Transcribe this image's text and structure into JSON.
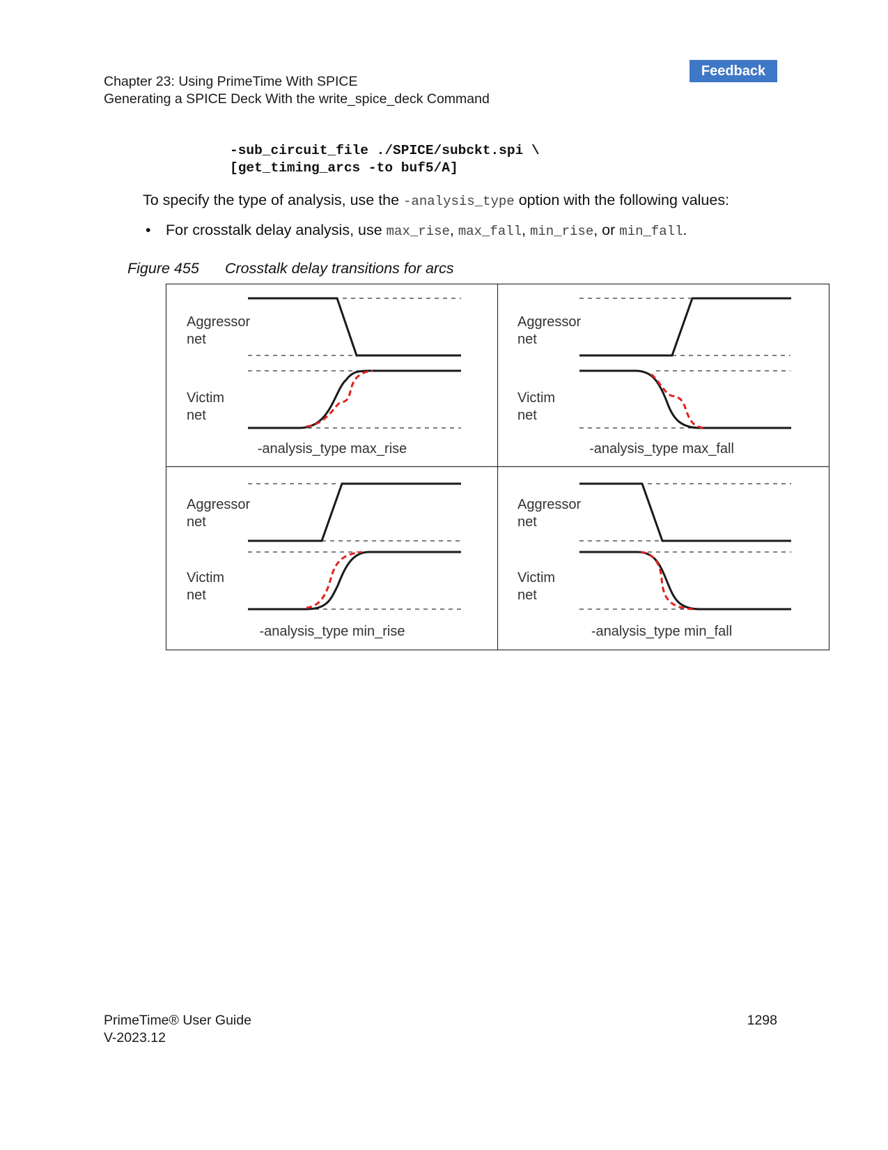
{
  "header": {
    "chapter": "Chapter 23: Using PrimeTime With SPICE",
    "section": "Generating a SPICE Deck With the write_spice_deck Command",
    "feedback_label": "Feedback"
  },
  "code_block": {
    "line1": "-sub_circuit_file ./SPICE/subckt.spi \\",
    "line2": "[get_timing_arcs -to buf5/A]"
  },
  "paragraph": {
    "before": "To specify the type of analysis, use the ",
    "option": "-analysis_type",
    "after": " option with the following values:"
  },
  "bullet": {
    "marker": "•",
    "lead": "For crosstalk delay analysis, use ",
    "v1": "max_rise",
    "sep1": ", ",
    "v2": "max_fall",
    "sep2": ", ",
    "v3": "min_rise",
    "sep3": ", or ",
    "v4": "min_fall",
    "end": "."
  },
  "figure": {
    "number": "Figure 455",
    "title": "Crosstalk delay transitions for arcs",
    "colors": {
      "nominal": "#1a1a1a",
      "crosstalk": "#e02020",
      "threshold": "#333333"
    },
    "panels": [
      {
        "aggressor_line1": "Aggressor",
        "aggressor_line2": "net",
        "victim_line1": "Victim",
        "victim_line2": "net",
        "caption": "-analysis_type max_rise"
      },
      {
        "aggressor_line1": "Aggressor",
        "aggressor_line2": "net",
        "victim_line1": "Victim",
        "victim_line2": "net",
        "caption": "-analysis_type max_fall"
      },
      {
        "aggressor_line1": "Aggressor",
        "aggressor_line2": "net",
        "victim_line1": "Victim",
        "victim_line2": "net",
        "caption": "-analysis_type min_rise"
      },
      {
        "aggressor_line1": "Aggressor",
        "aggressor_line2": "net",
        "victim_line1": "Victim",
        "victim_line2": "net",
        "caption": "-analysis_type min_fall"
      }
    ]
  },
  "footer": {
    "title": "PrimeTime® User Guide",
    "version": "V-2023.12",
    "page_number": "1298"
  }
}
